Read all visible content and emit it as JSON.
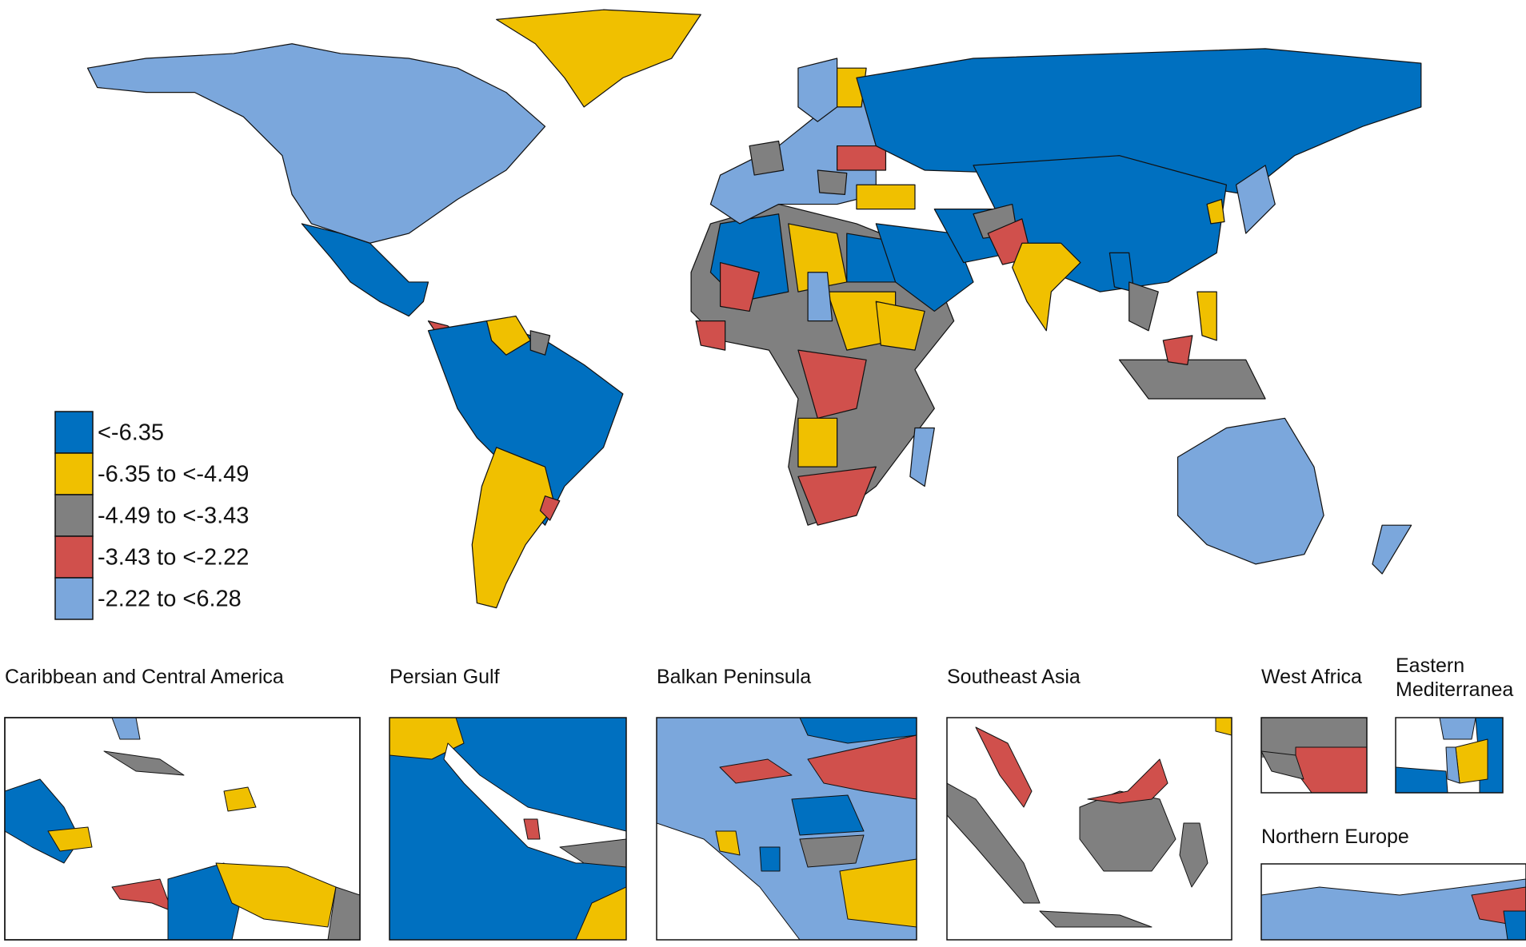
{
  "legend": {
    "items": [
      {
        "label": "<-6.35",
        "color": "#0070c0"
      },
      {
        "label": "-6.35 to <-4.49",
        "color": "#f0c000"
      },
      {
        "label": "-4.49 to <-3.43",
        "color": "#808080"
      },
      {
        "label": "-3.43 to <-2.22",
        "color": "#d0504c"
      },
      {
        "label": "-2.22 to <6.28",
        "color": "#7ba7dc"
      }
    ]
  },
  "insets": [
    {
      "title": "Caribbean and Central America"
    },
    {
      "title": "Persian Gulf"
    },
    {
      "title": "Balkan Peninsula"
    },
    {
      "title": "Southeast Asia"
    },
    {
      "title": "West Africa"
    },
    {
      "title": "Eastern Mediterranea"
    },
    {
      "title": "Northern Europe"
    }
  ]
}
